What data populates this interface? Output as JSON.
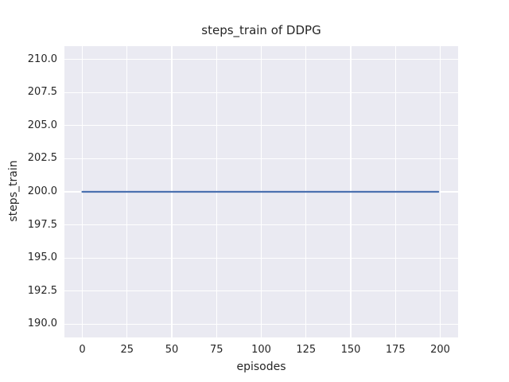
{
  "chart_data": {
    "type": "line",
    "title": "steps_train of DDPG",
    "xlabel": "episodes",
    "ylabel": "steps_train",
    "xlim": [
      -10,
      210
    ],
    "ylim": [
      189,
      211
    ],
    "xticks": [
      0,
      25,
      50,
      75,
      100,
      125,
      150,
      175,
      200
    ],
    "xtick_labels": [
      "0",
      "25",
      "50",
      "75",
      "100",
      "125",
      "150",
      "175",
      "200"
    ],
    "yticks": [
      190.0,
      192.5,
      195.0,
      197.5,
      200.0,
      202.5,
      205.0,
      207.5,
      210.0
    ],
    "ytick_labels": [
      "190.0",
      "192.5",
      "195.0",
      "197.5",
      "200.0",
      "202.5",
      "205.0",
      "207.5",
      "210.0"
    ],
    "grid": true,
    "legend_position": "none",
    "series": [
      {
        "name": "steps_train",
        "color": "#4C72B0",
        "x": [
          0,
          199
        ],
        "y": [
          200,
          200
        ]
      }
    ],
    "colors": {
      "plot_background": "#EAEAF2",
      "grid": "#FFFFFF",
      "line": "#4C72B0",
      "text": "#262626",
      "figure_background": "#FFFFFF"
    }
  }
}
